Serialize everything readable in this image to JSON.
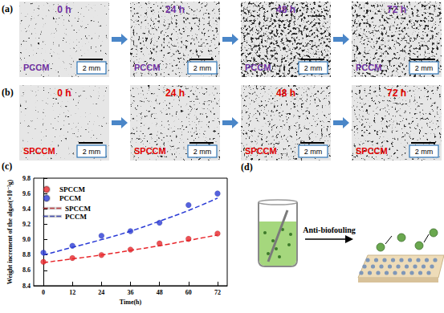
{
  "panels": [
    {
      "label": "(a)",
      "color": "#7030a0",
      "images": [
        {
          "time": "0 h",
          "sample": "PCCM",
          "scale_bar": "2 mm"
        },
        {
          "time": "24 h",
          "sample": "PCCM",
          "scale_bar": "2 mm"
        },
        {
          "time": "48 h",
          "sample": "PCCM",
          "scale_bar": "2 mm"
        },
        {
          "time": "72 h",
          "sample": "PCCM",
          "scale_bar": "2 mm"
        }
      ]
    },
    {
      "label": "(b)",
      "color": "#e00000",
      "images": [
        {
          "time": "0 h",
          "sample": "SPCCM",
          "scale_bar": "2 mm"
        },
        {
          "time": "24 h",
          "sample": "SPCCM",
          "scale_bar": "2 mm"
        },
        {
          "time": "48 h",
          "sample": "SPCCM",
          "scale_bar": "2 mm"
        },
        {
          "time": "72 h",
          "sample": "SPCCM",
          "scale_bar": "2 mm"
        }
      ]
    }
  ],
  "chart_data": {
    "panel_label": "(c)",
    "type": "scatter",
    "xlabel": "Time(h)",
    "ylabel": "Weight increment of the algae(×10⁻²g)",
    "x": [
      0,
      12,
      24,
      36,
      48,
      60,
      72
    ],
    "series": [
      {
        "name": "SPCCM",
        "type": "scatter",
        "marker": "circle",
        "color": "#e8252a",
        "values": [
          8.71,
          8.76,
          8.8,
          8.87,
          8.95,
          9.01,
          9.08
        ]
      },
      {
        "name": "PCCM",
        "type": "scatter",
        "marker": "circle",
        "color": "#2a3bd6",
        "values": [
          8.83,
          8.92,
          9.05,
          9.11,
          9.22,
          9.45,
          9.6
        ]
      },
      {
        "name": "SPCCM",
        "type": "line",
        "line_style": "dashed",
        "color": "#e8252a",
        "values": [
          8.7,
          8.75,
          8.8,
          8.86,
          8.92,
          8.99,
          9.06
        ]
      },
      {
        "name": "PCCM",
        "type": "line",
        "line_style": "dashed",
        "color": "#2a3bd6",
        "values": [
          8.8,
          8.9,
          9.0,
          9.11,
          9.24,
          9.38,
          9.54
        ]
      }
    ],
    "xlim": [
      -4,
      76
    ],
    "xticks": [
      0,
      12,
      24,
      36,
      48,
      60,
      72
    ],
    "ylim": [
      8.4,
      9.8
    ],
    "yticks": [
      8.4,
      8.6,
      8.8,
      {
        "value": 9,
        "label": "9.0"
      },
      9.2,
      9.4,
      9.6,
      9.8
    ],
    "legend": "upper-left",
    "grid": false
  },
  "diagram": {
    "label": "(d)",
    "arrow_text": "Anti-biofouling"
  }
}
